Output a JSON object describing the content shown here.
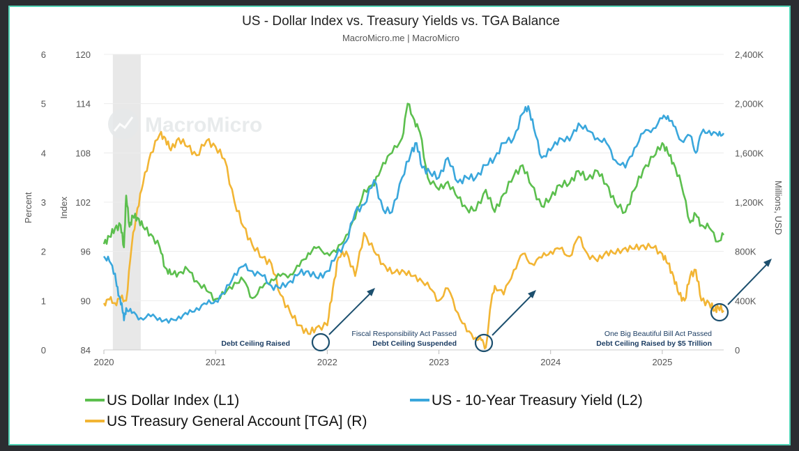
{
  "chart_data": {
    "type": "line",
    "title": "US - Dollar Index vs. Treasury Yields vs. TGA Balance",
    "subtitle": "MacroMicro.me | MacroMicro",
    "watermark": "MacroMicro",
    "x_ticks": [
      "2020",
      "2021",
      "2022",
      "2023",
      "2024",
      "2025"
    ],
    "x_range": [
      2020.0,
      2025.55
    ],
    "axes": {
      "percent": {
        "label": "Percent",
        "ticks": [
          "0",
          "1",
          "2",
          "3",
          "4",
          "5",
          "6"
        ],
        "range": [
          0,
          6
        ]
      },
      "index": {
        "label": "Index",
        "ticks": [
          "84",
          "90",
          "96",
          "102",
          "108",
          "114",
          "120"
        ],
        "range": [
          84,
          120
        ]
      },
      "usd": {
        "label": "Millions, USD",
        "ticks": [
          "0",
          "400K",
          "800K",
          "1,200K",
          "1,600K",
          "2,000K",
          "2,400K"
        ],
        "range": [
          0,
          2400000
        ]
      }
    },
    "shaded_period": [
      2020.08,
      2020.33
    ],
    "series": [
      {
        "name": "US Dollar Index (L1)",
        "axis": "index",
        "color": "#5cbf4e",
        "points": [
          [
            2020.0,
            96.9
          ],
          [
            2020.05,
            97.8
          ],
          [
            2020.1,
            98.8
          ],
          [
            2020.15,
            99.2
          ],
          [
            2020.18,
            96.5
          ],
          [
            2020.2,
            102.8
          ],
          [
            2020.23,
            99.0
          ],
          [
            2020.26,
            100.3
          ],
          [
            2020.3,
            100.1
          ],
          [
            2020.35,
            99.0
          ],
          [
            2020.42,
            98.1
          ],
          [
            2020.5,
            96.5
          ],
          [
            2020.55,
            94.0
          ],
          [
            2020.6,
            93.2
          ],
          [
            2020.67,
            93.4
          ],
          [
            2020.75,
            93.8
          ],
          [
            2020.83,
            92.4
          ],
          [
            2020.92,
            91.2
          ],
          [
            2021.0,
            90.2
          ],
          [
            2021.08,
            90.8
          ],
          [
            2021.17,
            92.2
          ],
          [
            2021.25,
            92.5
          ],
          [
            2021.33,
            90.3
          ],
          [
            2021.42,
            91.6
          ],
          [
            2021.5,
            92.6
          ],
          [
            2021.58,
            93.0
          ],
          [
            2021.67,
            93.2
          ],
          [
            2021.75,
            94.2
          ],
          [
            2021.83,
            95.8
          ],
          [
            2021.9,
            96.4
          ],
          [
            2022.0,
            95.8
          ],
          [
            2022.08,
            95.9
          ],
          [
            2022.17,
            98.0
          ],
          [
            2022.25,
            100.0
          ],
          [
            2022.33,
            103.5
          ],
          [
            2022.42,
            104.0
          ],
          [
            2022.5,
            106.8
          ],
          [
            2022.58,
            108.0
          ],
          [
            2022.67,
            109.8
          ],
          [
            2022.72,
            114.0
          ],
          [
            2022.78,
            112.0
          ],
          [
            2022.83,
            110.5
          ],
          [
            2022.9,
            105.0
          ],
          [
            2023.0,
            103.5
          ],
          [
            2023.08,
            104.5
          ],
          [
            2023.17,
            102.5
          ],
          [
            2023.25,
            101.2
          ],
          [
            2023.33,
            101.0
          ],
          [
            2023.42,
            103.5
          ],
          [
            2023.5,
            100.8
          ],
          [
            2023.58,
            103.0
          ],
          [
            2023.67,
            105.2
          ],
          [
            2023.75,
            106.5
          ],
          [
            2023.83,
            104.0
          ],
          [
            2023.92,
            101.5
          ],
          [
            2024.0,
            102.5
          ],
          [
            2024.08,
            104.1
          ],
          [
            2024.17,
            104.3
          ],
          [
            2024.25,
            105.8
          ],
          [
            2024.33,
            104.8
          ],
          [
            2024.42,
            105.8
          ],
          [
            2024.5,
            104.2
          ],
          [
            2024.58,
            101.8
          ],
          [
            2024.67,
            100.8
          ],
          [
            2024.75,
            103.5
          ],
          [
            2024.83,
            106.0
          ],
          [
            2024.92,
            107.5
          ],
          [
            2025.0,
            109.2
          ],
          [
            2025.05,
            108.0
          ],
          [
            2025.1,
            106.8
          ],
          [
            2025.17,
            104.2
          ],
          [
            2025.25,
            99.5
          ],
          [
            2025.3,
            100.5
          ],
          [
            2025.35,
            99.2
          ],
          [
            2025.42,
            98.9
          ],
          [
            2025.5,
            97.2
          ],
          [
            2025.55,
            98.0
          ]
        ]
      },
      {
        "name": "US - 10-Year Treasury Yield (L2)",
        "axis": "percent",
        "color": "#3aa7dc",
        "points": [
          [
            2020.0,
            1.9
          ],
          [
            2020.05,
            1.8
          ],
          [
            2020.1,
            1.55
          ],
          [
            2020.13,
            1.1
          ],
          [
            2020.16,
            0.95
          ],
          [
            2020.18,
            0.6
          ],
          [
            2020.2,
            0.85
          ],
          [
            2020.25,
            0.75
          ],
          [
            2020.33,
            0.65
          ],
          [
            2020.42,
            0.68
          ],
          [
            2020.5,
            0.65
          ],
          [
            2020.58,
            0.55
          ],
          [
            2020.67,
            0.68
          ],
          [
            2020.75,
            0.72
          ],
          [
            2020.83,
            0.85
          ],
          [
            2020.92,
            0.93
          ],
          [
            2021.0,
            1.0
          ],
          [
            2021.08,
            1.15
          ],
          [
            2021.17,
            1.55
          ],
          [
            2021.25,
            1.7
          ],
          [
            2021.33,
            1.6
          ],
          [
            2021.42,
            1.5
          ],
          [
            2021.5,
            1.3
          ],
          [
            2021.58,
            1.25
          ],
          [
            2021.67,
            1.4
          ],
          [
            2021.75,
            1.55
          ],
          [
            2021.83,
            1.6
          ],
          [
            2021.92,
            1.45
          ],
          [
            2022.0,
            1.6
          ],
          [
            2022.08,
            1.9
          ],
          [
            2022.17,
            2.2
          ],
          [
            2022.25,
            2.8
          ],
          [
            2022.33,
            2.95
          ],
          [
            2022.42,
            3.45
          ],
          [
            2022.5,
            2.85
          ],
          [
            2022.58,
            2.8
          ],
          [
            2022.67,
            3.5
          ],
          [
            2022.75,
            4.0
          ],
          [
            2022.8,
            4.2
          ],
          [
            2022.85,
            3.7
          ],
          [
            2022.92,
            3.6
          ],
          [
            2023.0,
            3.5
          ],
          [
            2023.08,
            3.9
          ],
          [
            2023.17,
            3.4
          ],
          [
            2023.25,
            3.5
          ],
          [
            2023.33,
            3.5
          ],
          [
            2023.42,
            3.75
          ],
          [
            2023.5,
            3.9
          ],
          [
            2023.58,
            4.2
          ],
          [
            2023.67,
            4.3
          ],
          [
            2023.75,
            4.8
          ],
          [
            2023.8,
            4.95
          ],
          [
            2023.85,
            4.5
          ],
          [
            2023.92,
            3.9
          ],
          [
            2024.0,
            4.05
          ],
          [
            2024.08,
            4.3
          ],
          [
            2024.17,
            4.25
          ],
          [
            2024.25,
            4.6
          ],
          [
            2024.33,
            4.45
          ],
          [
            2024.42,
            4.3
          ],
          [
            2024.5,
            4.2
          ],
          [
            2024.58,
            3.85
          ],
          [
            2024.67,
            3.7
          ],
          [
            2024.75,
            4.1
          ],
          [
            2024.83,
            4.4
          ],
          [
            2024.92,
            4.5
          ],
          [
            2025.0,
            4.7
          ],
          [
            2025.05,
            4.75
          ],
          [
            2025.1,
            4.55
          ],
          [
            2025.17,
            4.25
          ],
          [
            2025.25,
            4.35
          ],
          [
            2025.3,
            4.0
          ],
          [
            2025.35,
            4.4
          ],
          [
            2025.42,
            4.45
          ],
          [
            2025.5,
            4.35
          ],
          [
            2025.55,
            4.4
          ]
        ]
      },
      {
        "name": "US Treasury General Account [TGA] (R)",
        "axis": "usd",
        "color": "#f2b534",
        "points": [
          [
            2020.0,
            380000
          ],
          [
            2020.05,
            410000
          ],
          [
            2020.1,
            380000
          ],
          [
            2020.15,
            420000
          ],
          [
            2020.2,
            400000
          ],
          [
            2020.25,
            850000
          ],
          [
            2020.3,
            1150000
          ],
          [
            2020.35,
            1350000
          ],
          [
            2020.42,
            1600000
          ],
          [
            2020.5,
            1750000
          ],
          [
            2020.55,
            1720000
          ],
          [
            2020.6,
            1620000
          ],
          [
            2020.67,
            1720000
          ],
          [
            2020.75,
            1650000
          ],
          [
            2020.83,
            1580000
          ],
          [
            2020.92,
            1700000
          ],
          [
            2021.0,
            1650000
          ],
          [
            2021.08,
            1550000
          ],
          [
            2021.17,
            1200000
          ],
          [
            2021.25,
            1000000
          ],
          [
            2021.33,
            850000
          ],
          [
            2021.42,
            750000
          ],
          [
            2021.5,
            700000
          ],
          [
            2021.58,
            450000
          ],
          [
            2021.67,
            300000
          ],
          [
            2021.75,
            200000
          ],
          [
            2021.83,
            130000
          ],
          [
            2021.9,
            180000
          ],
          [
            2022.0,
            200000
          ],
          [
            2022.05,
            500000
          ],
          [
            2022.1,
            750000
          ],
          [
            2022.17,
            800000
          ],
          [
            2022.25,
            600000
          ],
          [
            2022.33,
            950000
          ],
          [
            2022.42,
            800000
          ],
          [
            2022.5,
            700000
          ],
          [
            2022.58,
            620000
          ],
          [
            2022.67,
            650000
          ],
          [
            2022.75,
            600000
          ],
          [
            2022.83,
            580000
          ],
          [
            2022.92,
            500000
          ],
          [
            2023.0,
            400000
          ],
          [
            2023.08,
            500000
          ],
          [
            2023.17,
            300000
          ],
          [
            2023.25,
            150000
          ],
          [
            2023.33,
            100000
          ],
          [
            2023.38,
            80000
          ],
          [
            2023.42,
            20000
          ],
          [
            2023.47,
            400000
          ],
          [
            2023.5,
            520000
          ],
          [
            2023.58,
            450000
          ],
          [
            2023.67,
            650000
          ],
          [
            2023.75,
            780000
          ],
          [
            2023.83,
            700000
          ],
          [
            2023.92,
            750000
          ],
          [
            2024.0,
            800000
          ],
          [
            2024.08,
            820000
          ],
          [
            2024.17,
            760000
          ],
          [
            2024.25,
            920000
          ],
          [
            2024.33,
            780000
          ],
          [
            2024.42,
            720000
          ],
          [
            2024.5,
            800000
          ],
          [
            2024.58,
            780000
          ],
          [
            2024.67,
            830000
          ],
          [
            2024.75,
            820000
          ],
          [
            2024.83,
            850000
          ],
          [
            2024.92,
            830000
          ],
          [
            2025.0,
            780000
          ],
          [
            2025.05,
            700000
          ],
          [
            2025.1,
            600000
          ],
          [
            2025.15,
            450000
          ],
          [
            2025.2,
            400000
          ],
          [
            2025.25,
            600000
          ],
          [
            2025.3,
            650000
          ],
          [
            2025.35,
            400000
          ],
          [
            2025.42,
            380000
          ],
          [
            2025.47,
            320000
          ],
          [
            2025.5,
            350000
          ],
          [
            2025.55,
            320000
          ]
        ]
      }
    ],
    "annotations": [
      {
        "lines": [
          "Debt Ceiling Raised"
        ],
        "at": [
          2021.93,
          70000
        ]
      },
      {
        "lines": [
          "Fiscal Responsibility Act Passed",
          "Debt Ceiling Suspended"
        ],
        "at": [
          2023.41,
          70000
        ]
      },
      {
        "lines": [
          "One Big Beautiful Bill Act Passed",
          "Debt Ceiling Raised by $5 Trillion"
        ],
        "at": [
          2025.52,
          320000
        ]
      }
    ],
    "legend": [
      {
        "label": "US Dollar Index (L1)",
        "color": "#5cbf4e"
      },
      {
        "label": "US - 10-Year Treasury Yield (L2)",
        "color": "#3aa7dc"
      },
      {
        "label": "US Treasury General Account [TGA] (R)",
        "color": "#f2b534"
      }
    ]
  }
}
